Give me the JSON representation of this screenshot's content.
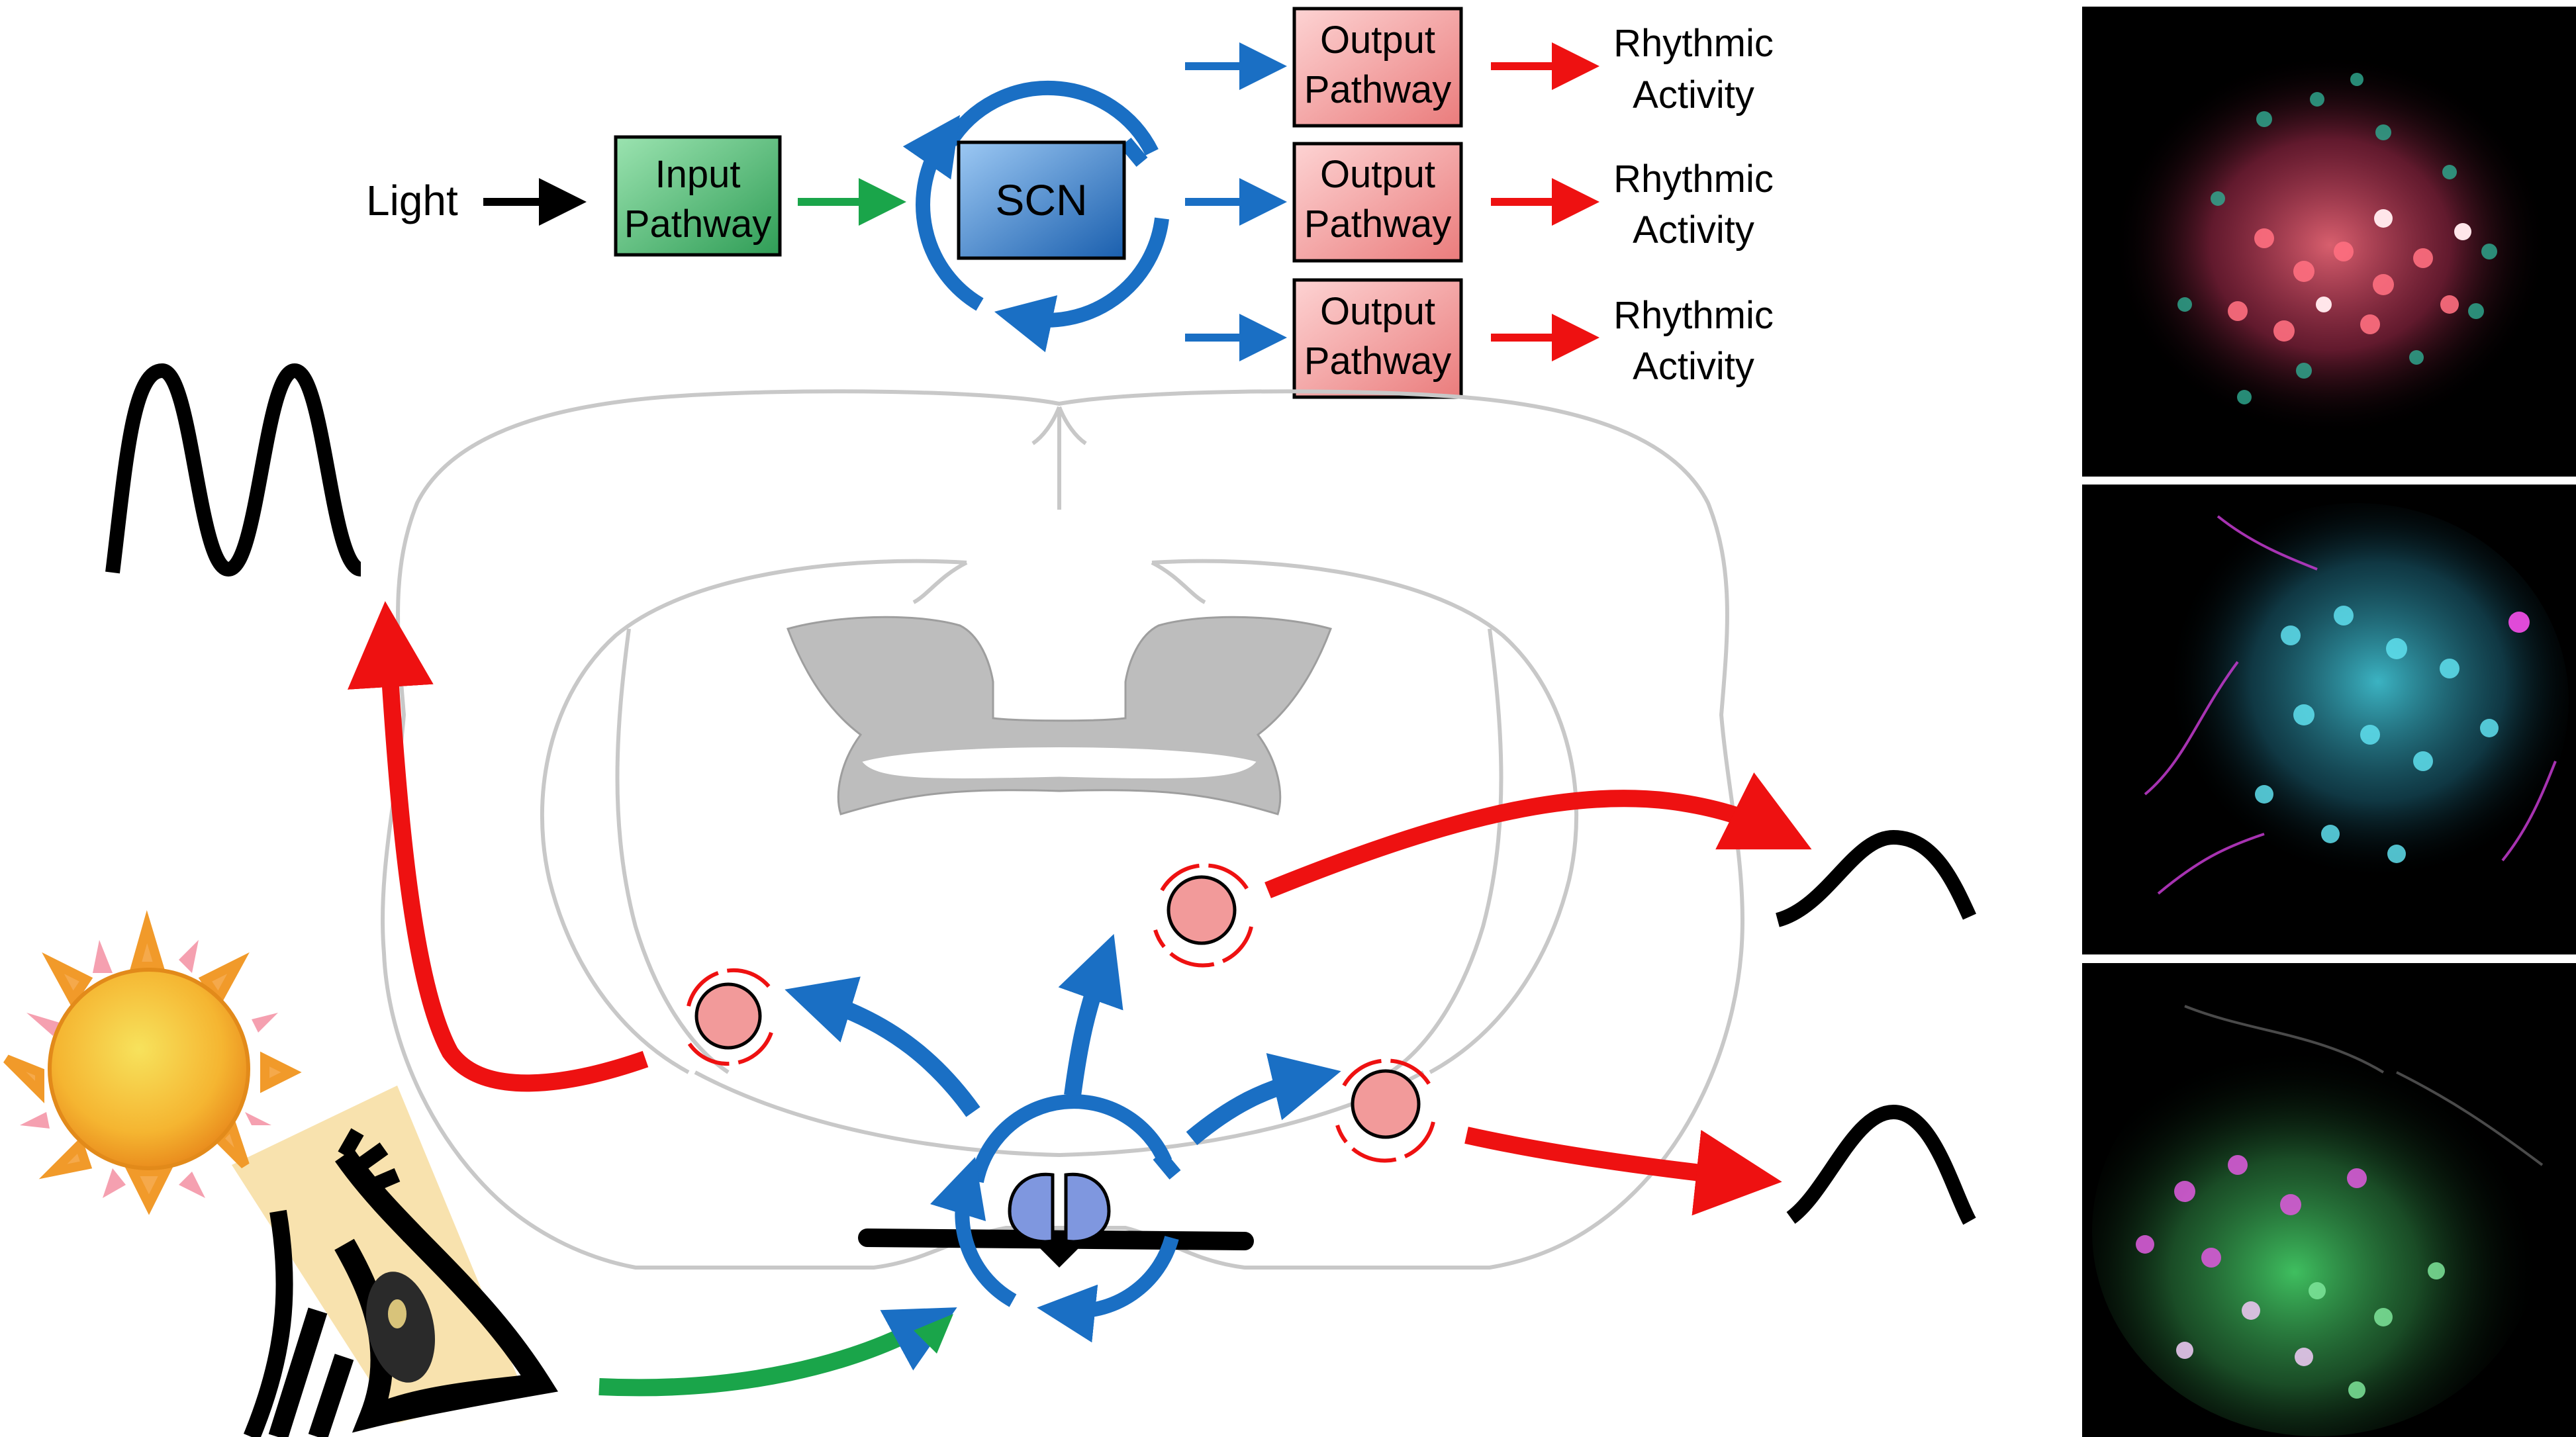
{
  "flow": {
    "light_label": "Light",
    "input_box": {
      "line1": "Input",
      "line2": "Pathway"
    },
    "scn_label": "SCN",
    "outputs": [
      {
        "line1": "Output",
        "line2": "Pathway",
        "result1": "Rhythmic",
        "result2": "Activity"
      },
      {
        "line1": "Output",
        "line2": "Pathway",
        "result1": "Rhythmic",
        "result2": "Activity"
      },
      {
        "line1": "Output",
        "line2": "Pathway",
        "result1": "Rhythmic",
        "result2": "Activity"
      }
    ]
  },
  "colors": {
    "input_green": "#3db36a",
    "scn_blue": "#1a6fc4",
    "output_red": "#f3a0a0",
    "arrow_red": "#ee1111",
    "arrow_blue": "#1a6fc4",
    "arrow_green": "#1aa54a",
    "brain_outline": "#c8c8c8",
    "ventricle_gray": "#bdbdbd"
  },
  "micrographs": [
    {
      "name": "red-and-teal-stained-scn"
    },
    {
      "name": "cyan-and-magenta-stained-scn"
    },
    {
      "name": "green-magenta-merged-scn"
    }
  ]
}
